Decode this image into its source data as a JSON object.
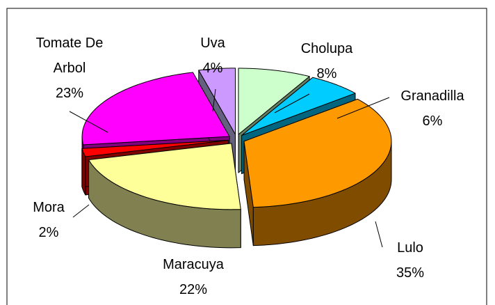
{
  "chart_data": {
    "type": "pie3d",
    "categories": [
      "Cholupa",
      "Granadilla",
      "Lulo",
      "Maracuya",
      "Mora",
      "Tomate De Arbol",
      "Uva"
    ],
    "values": [
      8,
      6,
      35,
      22,
      2,
      23,
      4
    ],
    "value_labels": [
      "8%",
      "6%",
      "35%",
      "22%",
      "2%",
      "23%",
      "4%"
    ],
    "colors": [
      "#ccffcc",
      "#00ccff",
      "#ff9900",
      "#ffff99",
      "#ff0000",
      "#ff00ff",
      "#cc99ff"
    ],
    "side_colors": [
      "#668066",
      "#006680",
      "#804c00",
      "#808050",
      "#800000",
      "#800080",
      "#666080"
    ]
  }
}
